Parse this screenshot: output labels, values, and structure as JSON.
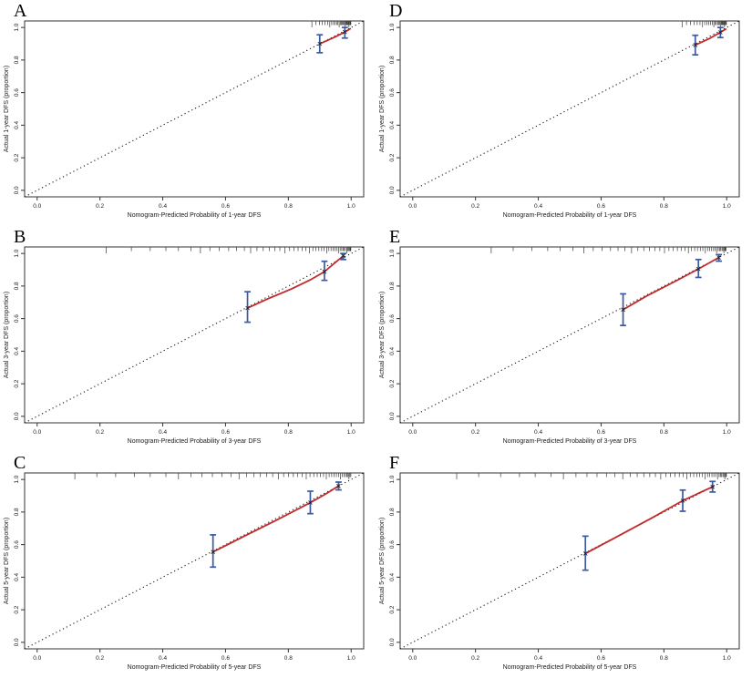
{
  "figure": {
    "background": "#ffffff",
    "colors": {
      "errorbar": "#3b5aa2",
      "calibration_line": "#c22b2b",
      "ideal_line": "#141414",
      "axis": "#333333",
      "text": "#1a1a1a",
      "rug": "#3a3a3a"
    },
    "tick_values": [
      0,
      0.2,
      0.4,
      0.6,
      0.8,
      1.0
    ],
    "tick_labels": [
      "0.0",
      "0.2",
      "0.4",
      "0.6",
      "0.8",
      "1.0"
    ]
  },
  "chart_data": [
    {
      "id": "A",
      "type": "line",
      "panel_label": "A",
      "title": "",
      "xlabel": "Nomogram-Predicted Probability of 1-year DFS",
      "ylabel": "Actual 1-year DFS (proportion)",
      "xlim": [
        0,
        1
      ],
      "ylim": [
        0,
        1
      ],
      "ideal_line": {
        "style": "dotted-diagonal",
        "from": [
          0,
          0
        ],
        "to": [
          1,
          1
        ]
      },
      "points": [
        {
          "x": 0.9,
          "y": 0.9,
          "lo": 0.845,
          "hi": 0.955
        },
        {
          "x": 0.98,
          "y": 0.972,
          "lo": 0.935,
          "hi": 1.0
        }
      ],
      "line": [
        [
          0.9,
          0.9
        ],
        [
          0.945,
          0.938
        ],
        [
          0.98,
          0.972
        ],
        [
          0.997,
          0.992
        ]
      ],
      "rug": [
        0.875,
        0.888,
        0.899,
        0.908,
        0.917,
        0.925,
        0.932,
        0.938,
        0.944,
        0.949,
        0.954,
        0.958,
        0.962,
        0.966,
        0.969,
        0.972,
        0.975,
        0.978,
        0.981,
        0.983,
        0.985,
        0.987,
        0.989,
        0.991,
        0.993,
        0.995,
        0.997,
        0.998,
        0.999
      ]
    },
    {
      "id": "B",
      "type": "line",
      "panel_label": "B",
      "title": "",
      "xlabel": "Nomogram-Predicted Probability of 3-year DFS",
      "ylabel": "Actual 3-year DFS (proportion)",
      "xlim": [
        0,
        1
      ],
      "ylim": [
        0,
        1
      ],
      "ideal_line": {
        "style": "dotted-diagonal",
        "from": [
          0,
          0
        ],
        "to": [
          1,
          1
        ]
      },
      "points": [
        {
          "x": 0.67,
          "y": 0.665,
          "lo": 0.578,
          "hi": 0.765
        },
        {
          "x": 0.915,
          "y": 0.888,
          "lo": 0.835,
          "hi": 0.952
        },
        {
          "x": 0.975,
          "y": 0.985,
          "lo": 0.963,
          "hi": 1.0
        }
      ],
      "line": [
        [
          0.67,
          0.665
        ],
        [
          0.74,
          0.726
        ],
        [
          0.81,
          0.782
        ],
        [
          0.87,
          0.838
        ],
        [
          0.915,
          0.888
        ],
        [
          0.95,
          0.945
        ],
        [
          0.975,
          0.985
        ]
      ],
      "rug": [
        0.22,
        0.3,
        0.36,
        0.41,
        0.45,
        0.49,
        0.52,
        0.55,
        0.58,
        0.61,
        0.635,
        0.66,
        0.68,
        0.7,
        0.72,
        0.74,
        0.757,
        0.773,
        0.789,
        0.804,
        0.818,
        0.831,
        0.844,
        0.856,
        0.867,
        0.878,
        0.888,
        0.897,
        0.906,
        0.914,
        0.922,
        0.929,
        0.936,
        0.943,
        0.949,
        0.955,
        0.96,
        0.965,
        0.97,
        0.974,
        0.978,
        0.982,
        0.986,
        0.989,
        0.992,
        0.995,
        0.997,
        0.999
      ]
    },
    {
      "id": "C",
      "type": "line",
      "panel_label": "C",
      "title": "",
      "xlabel": "Nomogram-Predicted Probability of 5-year DFS",
      "ylabel": "Actual 5-year DFS (proportion)",
      "xlim": [
        0,
        1
      ],
      "ylim": [
        0,
        1
      ],
      "ideal_line": {
        "style": "dotted-diagonal",
        "from": [
          0,
          0
        ],
        "to": [
          1,
          1
        ]
      },
      "points": [
        {
          "x": 0.56,
          "y": 0.555,
          "lo": 0.462,
          "hi": 0.66
        },
        {
          "x": 0.87,
          "y": 0.858,
          "lo": 0.79,
          "hi": 0.928
        },
        {
          "x": 0.96,
          "y": 0.96,
          "lo": 0.936,
          "hi": 0.984
        }
      ],
      "line": [
        [
          0.56,
          0.555
        ],
        [
          0.66,
          0.652
        ],
        [
          0.76,
          0.748
        ],
        [
          0.87,
          0.858
        ],
        [
          0.92,
          0.912
        ],
        [
          0.96,
          0.96
        ]
      ],
      "rug": [
        0.12,
        0.19,
        0.25,
        0.31,
        0.36,
        0.41,
        0.45,
        0.49,
        0.525,
        0.558,
        0.589,
        0.617,
        0.643,
        0.667,
        0.69,
        0.711,
        0.731,
        0.75,
        0.768,
        0.785,
        0.801,
        0.816,
        0.83,
        0.844,
        0.857,
        0.869,
        0.881,
        0.892,
        0.902,
        0.912,
        0.921,
        0.93,
        0.938,
        0.946,
        0.953,
        0.96,
        0.966,
        0.972,
        0.977,
        0.982,
        0.986,
        0.99,
        0.993,
        0.996,
        0.999
      ]
    },
    {
      "id": "D",
      "type": "line",
      "panel_label": "D",
      "title": "",
      "xlabel": "Nomogram-Predicted Probability of 1-year DFS",
      "ylabel": "Actual 1-year DFS (proportion)",
      "xlim": [
        0,
        1
      ],
      "ylim": [
        0,
        1
      ],
      "ideal_line": {
        "style": "dotted-diagonal",
        "from": [
          0,
          0
        ],
        "to": [
          1,
          1
        ]
      },
      "points": [
        {
          "x": 0.9,
          "y": 0.892,
          "lo": 0.832,
          "hi": 0.952
        },
        {
          "x": 0.98,
          "y": 0.97,
          "lo": 0.938,
          "hi": 1.0
        }
      ],
      "line": [
        [
          0.9,
          0.892
        ],
        [
          0.945,
          0.932
        ],
        [
          0.98,
          0.97
        ],
        [
          0.997,
          0.99
        ]
      ],
      "rug": [
        0.858,
        0.872,
        0.885,
        0.896,
        0.906,
        0.915,
        0.923,
        0.93,
        0.937,
        0.943,
        0.949,
        0.954,
        0.959,
        0.963,
        0.967,
        0.971,
        0.974,
        0.977,
        0.98,
        0.983,
        0.985,
        0.987,
        0.989,
        0.991,
        0.993,
        0.995,
        0.997,
        0.999
      ]
    },
    {
      "id": "E",
      "type": "line",
      "panel_label": "E",
      "title": "",
      "xlabel": "Nomogram-Predicted Probability of 3-year DFS",
      "ylabel": "Actual 3-year DFS (proportion)",
      "xlim": [
        0,
        1
      ],
      "ylim": [
        0,
        1
      ],
      "ideal_line": {
        "style": "dotted-diagonal",
        "from": [
          0,
          0
        ],
        "to": [
          1,
          1
        ]
      },
      "points": [
        {
          "x": 0.67,
          "y": 0.655,
          "lo": 0.558,
          "hi": 0.752
        },
        {
          "x": 0.91,
          "y": 0.905,
          "lo": 0.853,
          "hi": 0.963
        },
        {
          "x": 0.975,
          "y": 0.975,
          "lo": 0.953,
          "hi": 0.993
        }
      ],
      "line": [
        [
          0.67,
          0.655
        ],
        [
          0.75,
          0.744
        ],
        [
          0.84,
          0.833
        ],
        [
          0.91,
          0.905
        ],
        [
          0.975,
          0.975
        ]
      ],
      "rug": [
        0.25,
        0.32,
        0.38,
        0.43,
        0.47,
        0.51,
        0.545,
        0.575,
        0.603,
        0.63,
        0.654,
        0.676,
        0.697,
        0.717,
        0.736,
        0.754,
        0.771,
        0.787,
        0.802,
        0.816,
        0.83,
        0.843,
        0.855,
        0.867,
        0.878,
        0.888,
        0.898,
        0.907,
        0.916,
        0.924,
        0.932,
        0.939,
        0.946,
        0.952,
        0.958,
        0.963,
        0.968,
        0.973,
        0.977,
        0.981,
        0.985,
        0.988,
        0.991,
        0.994,
        0.996,
        0.998
      ]
    },
    {
      "id": "F",
      "type": "line",
      "panel_label": "F",
      "title": "",
      "xlabel": "Nomogram-Predicted Probability of 5-year DFS",
      "ylabel": "Actual 5-year DFS (proportion)",
      "xlim": [
        0,
        1
      ],
      "ylim": [
        0,
        1
      ],
      "ideal_line": {
        "style": "dotted-diagonal",
        "from": [
          0,
          0
        ],
        "to": [
          1,
          1
        ]
      },
      "points": [
        {
          "x": 0.55,
          "y": 0.545,
          "lo": 0.443,
          "hi": 0.652
        },
        {
          "x": 0.86,
          "y": 0.87,
          "lo": 0.805,
          "hi": 0.935
        },
        {
          "x": 0.955,
          "y": 0.955,
          "lo": 0.923,
          "hi": 0.988
        }
      ],
      "line": [
        [
          0.55,
          0.545
        ],
        [
          0.65,
          0.648
        ],
        [
          0.76,
          0.762
        ],
        [
          0.86,
          0.87
        ],
        [
          0.91,
          0.915
        ],
        [
          0.955,
          0.955
        ]
      ],
      "rug": [
        0.14,
        0.21,
        0.28,
        0.34,
        0.39,
        0.44,
        0.48,
        0.52,
        0.555,
        0.587,
        0.617,
        0.644,
        0.669,
        0.693,
        0.715,
        0.736,
        0.755,
        0.773,
        0.79,
        0.806,
        0.821,
        0.835,
        0.849,
        0.861,
        0.873,
        0.884,
        0.895,
        0.905,
        0.914,
        0.923,
        0.931,
        0.939,
        0.946,
        0.953,
        0.959,
        0.965,
        0.971,
        0.976,
        0.98,
        0.984,
        0.988,
        0.991,
        0.994,
        0.997,
        0.999
      ]
    }
  ]
}
